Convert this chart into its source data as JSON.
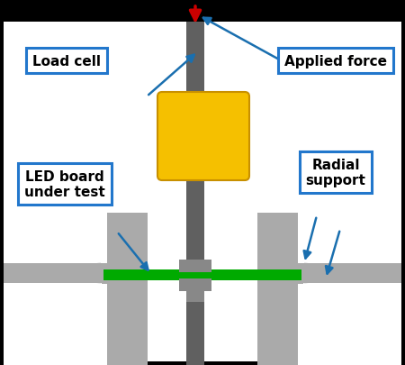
{
  "bg_color": "#000000",
  "main_bg": "#ffffff",
  "gray_light": "#aaaaaa",
  "gray_medium": "#888888",
  "gray_dark": "#606060",
  "green_color": "#00aa00",
  "yellow_color": "#f5c000",
  "yellow_edge": "#c89000",
  "blue_arrow_color": "#1a6faf",
  "red_arrow_color": "#cc0000",
  "label_bg": "#ffffff",
  "label_border": "#2277cc",
  "labels": {
    "load_cell": "Load cell",
    "applied_force": "Applied force",
    "led_board": "LED board\nunder test",
    "radial_support": "Radial\nsupport"
  },
  "figsize": [
    4.5,
    4.06
  ],
  "dpi": 100
}
